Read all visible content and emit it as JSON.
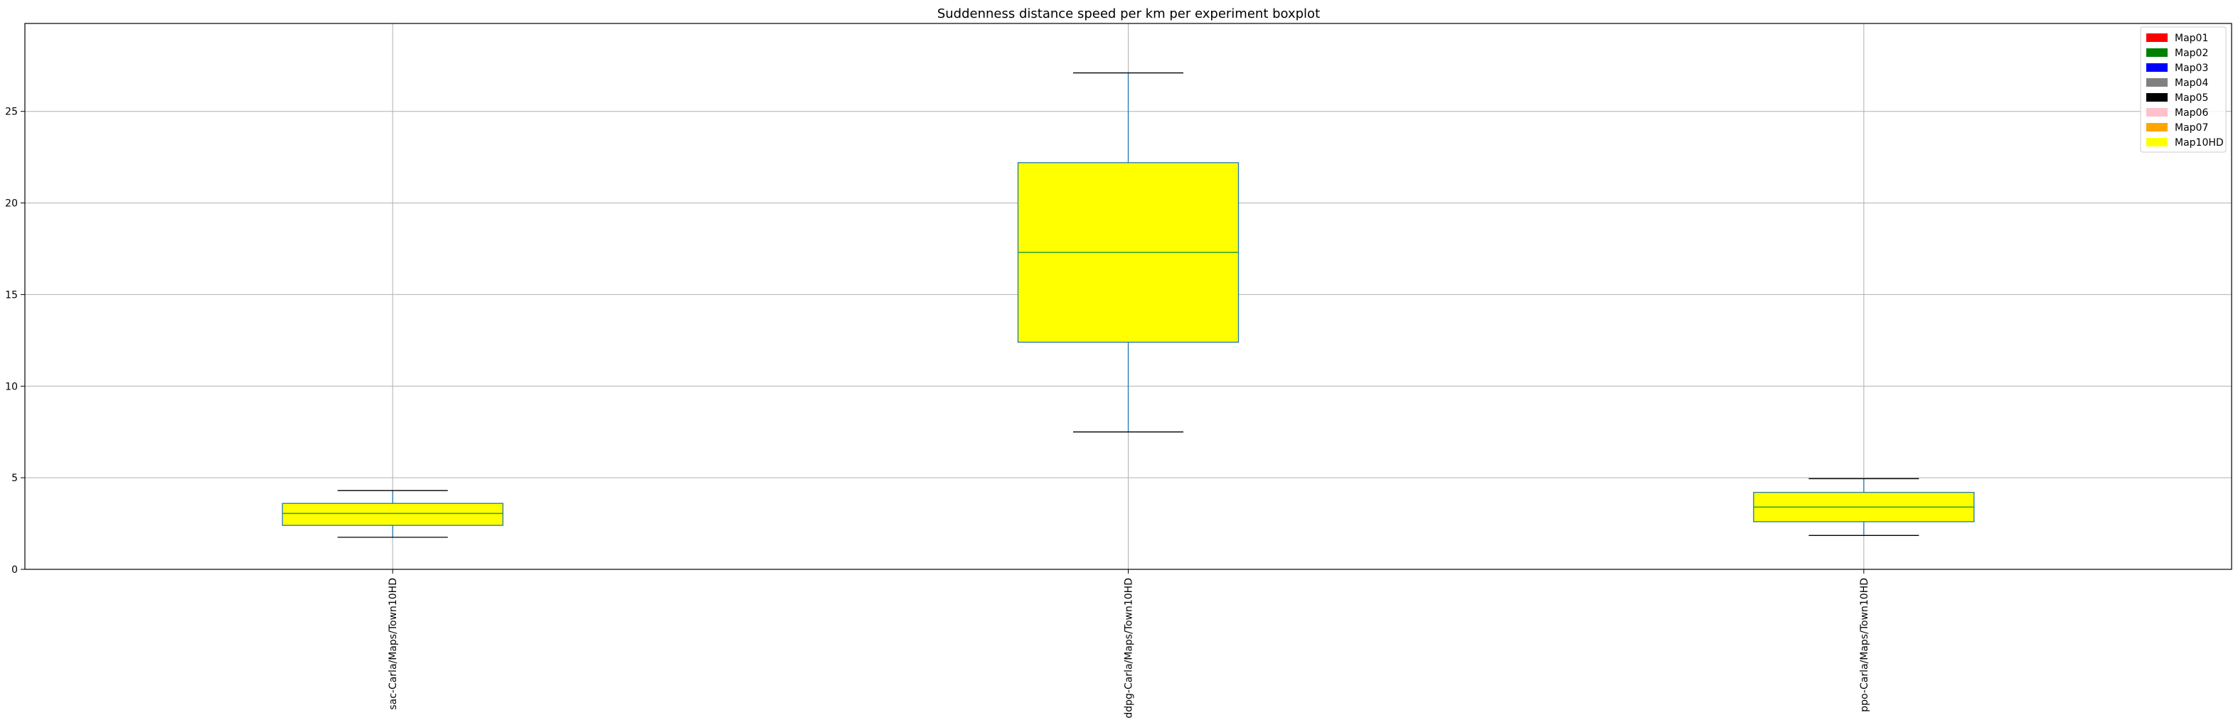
{
  "chart_data": {
    "type": "boxplot",
    "title": "Suddenness distance speed per km per experiment boxplot",
    "xlabel": "",
    "ylabel": "",
    "categories": [
      "sac-Carla/Maps/Town10HD",
      "ddpg-Carla/Maps/Town10HD",
      "ppo-Carla/Maps/Town10HD"
    ],
    "boxes": [
      {
        "whislo": 1.75,
        "q1": 2.4,
        "med": 3.05,
        "q3": 3.6,
        "whishi": 4.3
      },
      {
        "whislo": 7.5,
        "q1": 12.4,
        "med": 17.3,
        "q3": 22.2,
        "whishi": 27.1
      },
      {
        "whislo": 1.85,
        "q1": 2.6,
        "med": 3.4,
        "q3": 4.2,
        "whishi": 4.95
      }
    ],
    "ylim": [
      0,
      29.8
    ],
    "yticks": [
      0,
      5,
      10,
      15,
      20,
      25
    ],
    "grid": true,
    "legend_position": "top-right",
    "legend": [
      {
        "label": "Map01",
        "color": "#ff0000"
      },
      {
        "label": "Map02",
        "color": "#008000"
      },
      {
        "label": "Map03",
        "color": "#0000ff"
      },
      {
        "label": "Map04",
        "color": "#808080"
      },
      {
        "label": "Map05",
        "color": "#000000"
      },
      {
        "label": "Map06",
        "color": "#ffc0cb"
      },
      {
        "label": "Map07",
        "color": "#ffa500"
      },
      {
        "label": "Map10HD",
        "color": "#ffff00"
      }
    ],
    "box_fill": "#ffff00",
    "box_edge": "#1f77b4",
    "median_color": "#2ca02c"
  }
}
